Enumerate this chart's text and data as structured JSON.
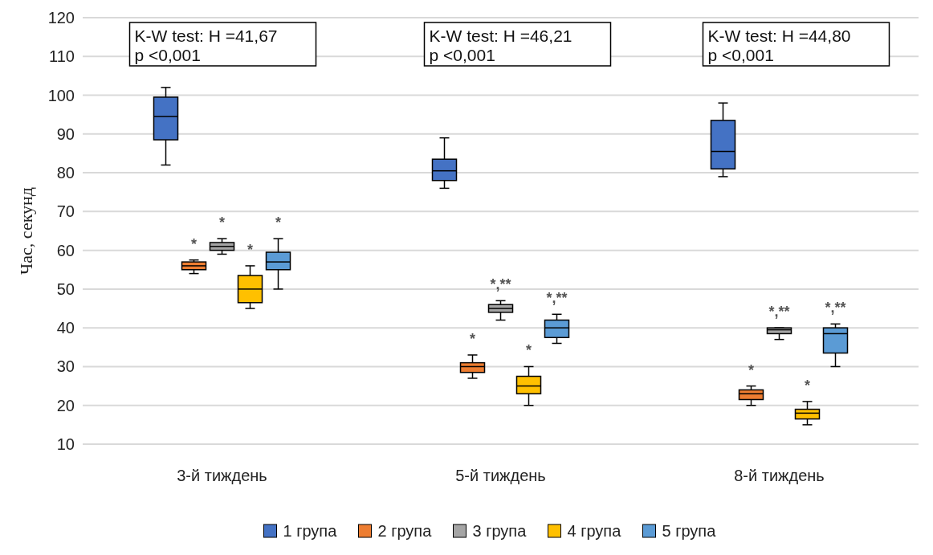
{
  "chart_data": {
    "type": "box",
    "ylabel": "Час, секунд",
    "categories": [
      "3-й тиждень",
      "5-й тиждень",
      "8-й тиждень"
    ],
    "ylim": [
      10,
      120
    ],
    "yticks": [
      10,
      20,
      30,
      40,
      50,
      60,
      70,
      80,
      90,
      100,
      110,
      120
    ],
    "grid": "y",
    "legend": "bottom",
    "series": [
      {
        "name": "1 група",
        "color": "#4472c4",
        "boxes": [
          {
            "low": 82,
            "q1": 88.5,
            "median": 94.5,
            "q3": 99.5,
            "high": 102
          },
          {
            "low": 76,
            "q1": 78,
            "median": 80.5,
            "q3": 83.5,
            "high": 89
          },
          {
            "low": 79,
            "q1": 81,
            "median": 85.5,
            "q3": 93.5,
            "high": 98
          }
        ]
      },
      {
        "name": "2 група",
        "color": "#ed7d31",
        "boxes": [
          {
            "low": 54,
            "q1": 55,
            "median": 56,
            "q3": 57,
            "high": 57.5
          },
          {
            "low": 27,
            "q1": 28.5,
            "median": 30,
            "q3": 31,
            "high": 33
          },
          {
            "low": 20,
            "q1": 21.5,
            "median": 23,
            "q3": 24,
            "high": 25
          }
        ]
      },
      {
        "name": "3 група",
        "color": "#a5a5a5",
        "boxes": [
          {
            "low": 59,
            "q1": 60,
            "median": 61,
            "q3": 62,
            "high": 63
          },
          {
            "low": 42,
            "q1": 44,
            "median": 45,
            "q3": 46,
            "high": 47
          },
          {
            "low": 37,
            "q1": 38.5,
            "median": 39.5,
            "q3": 40,
            "high": 40
          }
        ]
      },
      {
        "name": "4 група",
        "color": "#ffc000",
        "boxes": [
          {
            "low": 45,
            "q1": 46.5,
            "median": 50,
            "q3": 53.5,
            "high": 56
          },
          {
            "low": 20,
            "q1": 23,
            "median": 25,
            "q3": 27.5,
            "high": 30
          },
          {
            "low": 15,
            "q1": 16.5,
            "median": 18,
            "q3": 19,
            "high": 21
          }
        ]
      },
      {
        "name": "5 група",
        "color": "#5b9bd5",
        "boxes": [
          {
            "low": 50,
            "q1": 55,
            "median": 57,
            "q3": 59.5,
            "high": 63
          },
          {
            "low": 36,
            "q1": 37.5,
            "median": 40,
            "q3": 42,
            "high": 43.5
          },
          {
            "low": 30,
            "q1": 33.5,
            "median": 38.5,
            "q3": 40,
            "high": 41
          }
        ]
      }
    ],
    "annotations": [
      "K-W test: H =41,67\np <0,001",
      "K-W test: H =46,21\np <0,001",
      "K-W test: H =44,80\np <0,001",
      "*",
      "*",
      "*",
      "*",
      "*",
      "*,**",
      "*",
      "*,**",
      "*",
      "*,**",
      "*",
      "*,**"
    ]
  }
}
